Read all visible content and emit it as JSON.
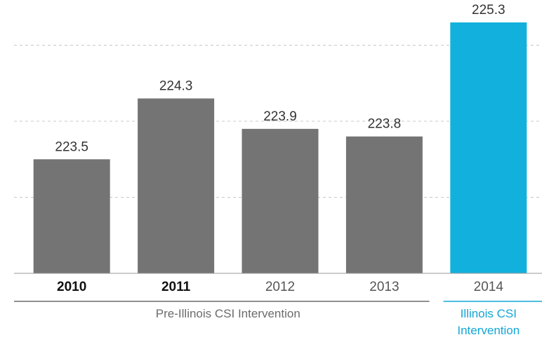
{
  "chart_data": {
    "type": "bar",
    "categories": [
      "2010",
      "2011",
      "2012",
      "2013",
      "2014"
    ],
    "values": [
      223.5,
      224.3,
      223.9,
      223.8,
      225.3
    ],
    "colors": [
      "#747474",
      "#747474",
      "#747474",
      "#747474",
      "#12b1dd"
    ],
    "ylim": [
      222,
      225.3
    ],
    "yticks": [
      223,
      224,
      225
    ],
    "grid": true,
    "groups": [
      {
        "label": "Pre-Illinois CSI Intervention",
        "count": 4,
        "color": "#6b6b6b"
      },
      {
        "label": "Illinois CSI Intervention",
        "count": 1,
        "color": "#12a6d6"
      }
    ]
  }
}
